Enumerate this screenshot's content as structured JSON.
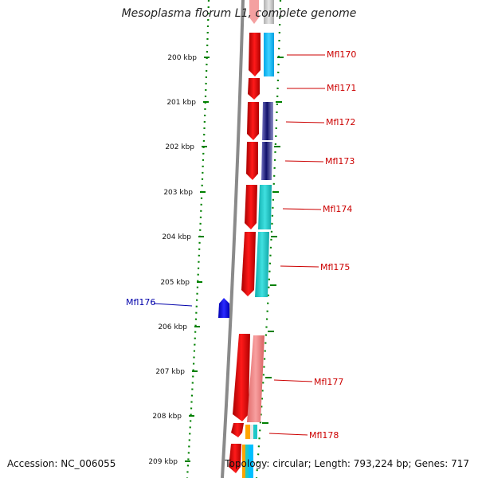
{
  "header": {
    "title": "Mesoplasma florum L1, complete genome"
  },
  "footer": {
    "accession": "Accession: NC_006055",
    "topology": "Topology: circular; Length: 793,224 bp; Genes: 717"
  },
  "ruler": {
    "ticks": [
      "200 kbp",
      "201 kbp",
      "202 kbp",
      "203 kbp",
      "204 kbp",
      "205 kbp",
      "206 kbp",
      "207 kbp",
      "208 kbp",
      "209 kbp"
    ]
  },
  "genes": [
    {
      "label": "Mfl170",
      "strand": "forward",
      "color": "#cc0000"
    },
    {
      "label": "Mfl171",
      "strand": "forward",
      "color": "#cc0000"
    },
    {
      "label": "Mfl172",
      "strand": "forward",
      "color": "#cc0000"
    },
    {
      "label": "Mfl173",
      "strand": "forward",
      "color": "#cc0000"
    },
    {
      "label": "Mfl174",
      "strand": "forward",
      "color": "#cc0000"
    },
    {
      "label": "Mfl175",
      "strand": "forward",
      "color": "#cc0000"
    },
    {
      "label": "Mfl176",
      "strand": "reverse",
      "color": "#0000cc"
    },
    {
      "label": "Mfl177",
      "strand": "forward",
      "color": "#cc0000"
    },
    {
      "label": "Mfl178",
      "strand": "forward",
      "color": "#cc0000"
    }
  ],
  "colors": {
    "forward_gene": "#e00000",
    "reverse_gene": "#0000ee",
    "forward_label": "#cc0000",
    "reverse_label": "#0000aa",
    "ruler": "#008000",
    "backbone": "#808080",
    "cog_sky": "#00bfff",
    "cog_navy": "#1a1a80",
    "cog_teal": "#1ec8c8",
    "cog_pink": "#f08080",
    "cog_orange": "#ffa500"
  }
}
